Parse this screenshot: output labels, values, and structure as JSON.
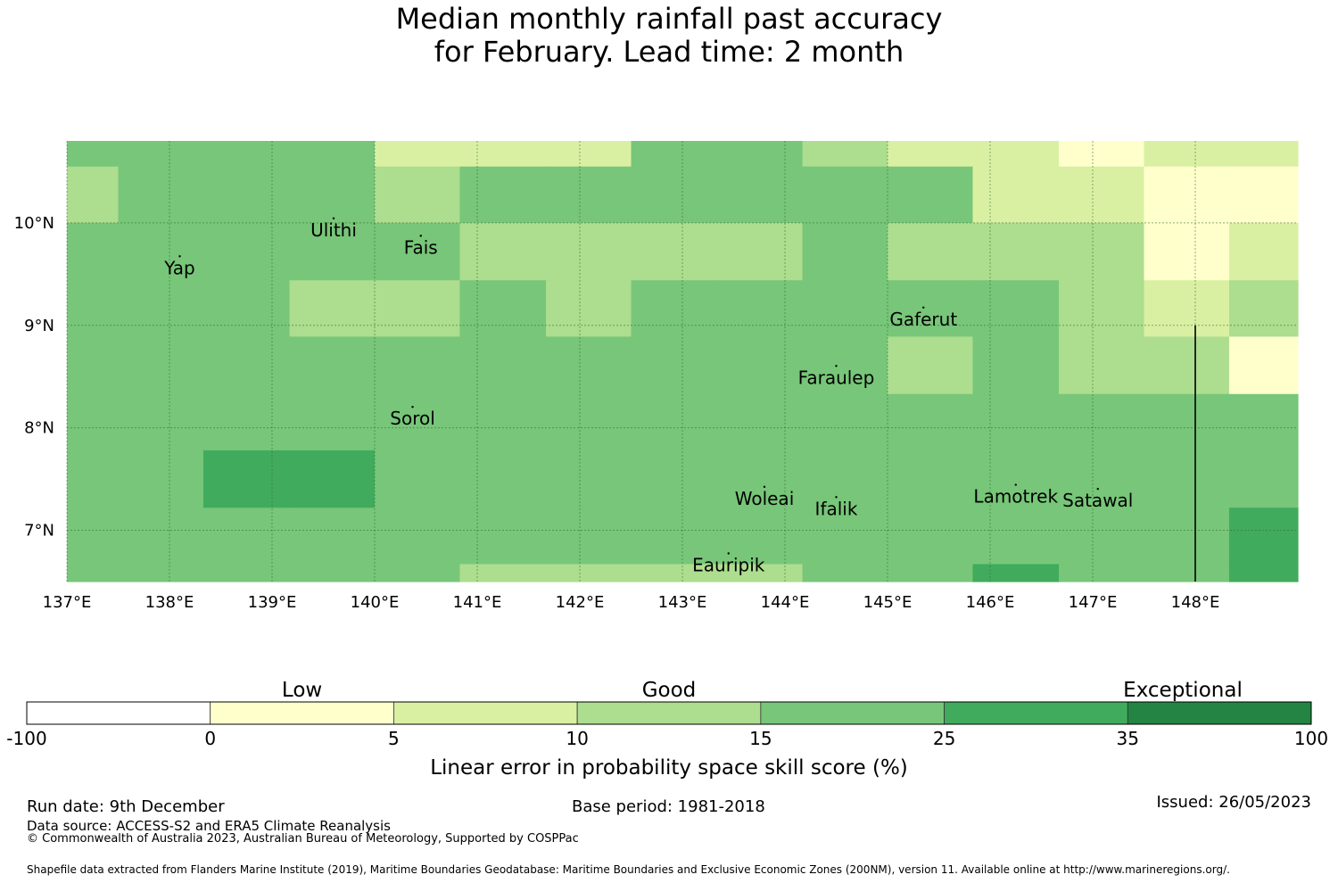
{
  "title": {
    "line1": "Median monthly rainfall past accuracy",
    "line2": "for February. Lead time: 2 month"
  },
  "map": {
    "lon_range": [
      137.0,
      149.0
    ],
    "lat_range": [
      6.5,
      10.8
    ],
    "lon_ticks": [
      {
        "value": 137,
        "label": "137°E"
      },
      {
        "value": 138,
        "label": "138°E"
      },
      {
        "value": 139,
        "label": "139°E"
      },
      {
        "value": 140,
        "label": "140°E"
      },
      {
        "value": 141,
        "label": "141°E"
      },
      {
        "value": 142,
        "label": "142°E"
      },
      {
        "value": 143,
        "label": "143°E"
      },
      {
        "value": 144,
        "label": "144°E"
      },
      {
        "value": 145,
        "label": "145°E"
      },
      {
        "value": 146,
        "label": "146°E"
      },
      {
        "value": 147,
        "label": "147°E"
      },
      {
        "value": 148,
        "label": "148°E"
      }
    ],
    "lat_ticks": [
      {
        "value": 10,
        "label": "10°N"
      },
      {
        "value": 9,
        "label": "9°N"
      },
      {
        "value": 8,
        "label": "8°N"
      },
      {
        "value": 7,
        "label": "7°N"
      }
    ],
    "grid_lon_edges": [
      137.0,
      137.5,
      138.33,
      139.17,
      140.0,
      140.83,
      141.67,
      142.5,
      143.33,
      144.17,
      145.0,
      145.83,
      146.67,
      147.5,
      148.33,
      149.0
    ],
    "grid_lat_edges": [
      10.8,
      10.55,
      10.0,
      9.44,
      8.89,
      8.33,
      7.78,
      7.22,
      6.67,
      6.5
    ],
    "grid_bins": [
      [
        3,
        3,
        3,
        3,
        1,
        1,
        1,
        3,
        3,
        2,
        1,
        1,
        0,
        1,
        1
      ],
      [
        2,
        3,
        3,
        3,
        2,
        3,
        3,
        3,
        3,
        3,
        3,
        1,
        1,
        0,
        0
      ],
      [
        3,
        3,
        3,
        3,
        3,
        2,
        2,
        2,
        2,
        3,
        2,
        2,
        2,
        0,
        1
      ],
      [
        3,
        3,
        3,
        2,
        2,
        3,
        2,
        3,
        3,
        3,
        3,
        3,
        2,
        1,
        2
      ],
      [
        3,
        3,
        3,
        3,
        3,
        3,
        3,
        3,
        3,
        3,
        2,
        3,
        2,
        2,
        0
      ],
      [
        3,
        3,
        3,
        3,
        3,
        3,
        3,
        3,
        3,
        3,
        3,
        3,
        3,
        3,
        3
      ],
      [
        3,
        3,
        4,
        4,
        3,
        3,
        3,
        3,
        3,
        3,
        3,
        3,
        3,
        3,
        3
      ],
      [
        3,
        3,
        3,
        3,
        3,
        3,
        3,
        3,
        3,
        3,
        3,
        3,
        3,
        3,
        4
      ],
      [
        3,
        3,
        3,
        3,
        3,
        2,
        2,
        2,
        2,
        3,
        3,
        4,
        3,
        3,
        4
      ]
    ],
    "places": [
      {
        "name": "Yap",
        "lon": 138.1,
        "lat": 9.5
      },
      {
        "name": "Ulithi",
        "lon": 139.6,
        "lat": 9.87
      },
      {
        "name": "Fais",
        "lon": 140.45,
        "lat": 9.7
      },
      {
        "name": "Gaferut",
        "lon": 145.35,
        "lat": 9.0
      },
      {
        "name": "Faraulep",
        "lon": 144.5,
        "lat": 8.43
      },
      {
        "name": "Sorol",
        "lon": 140.37,
        "lat": 8.03
      },
      {
        "name": "Woleai",
        "lon": 143.8,
        "lat": 7.25
      },
      {
        "name": "Ifalik",
        "lon": 144.5,
        "lat": 7.15
      },
      {
        "name": "Lamotrek",
        "lon": 146.25,
        "lat": 7.27
      },
      {
        "name": "Satawal",
        "lon": 147.05,
        "lat": 7.23
      },
      {
        "name": "Eauripik",
        "lon": 143.45,
        "lat": 6.6
      }
    ]
  },
  "colorbar": {
    "ticks": [
      "-100",
      "0",
      "5",
      "10",
      "15",
      "25",
      "35",
      "100"
    ],
    "colors": [
      "#ffffff",
      "#ffffcc",
      "#d9f0a3",
      "#addd8e",
      "#78c679",
      "#41ab5d",
      "#238443"
    ],
    "categories": [
      "Low",
      "Good",
      "Exceptional"
    ],
    "xlabel": "Linear error in probability space skill score (%)"
  },
  "footer": {
    "run_date": "Run date: 9th December",
    "data_source": "Data source: ACCESS-S2 and ERA5 Climate Reanalysis",
    "copyright": "© Commonwealth of Australia 2023, Australian Bureau of Meteorology, Supported by COSPPac",
    "base_period": "Base period: 1981-2018",
    "issued": "Issued: 26/05/2023",
    "shapefile": "Shapefile data extracted from Flanders Marine Institute (2019), Maritime Boundaries Geodatabase: Maritime Boundaries and Exclusive Economic Zones (200NM), version 11. Available online at http://www.marineregions.org/."
  }
}
